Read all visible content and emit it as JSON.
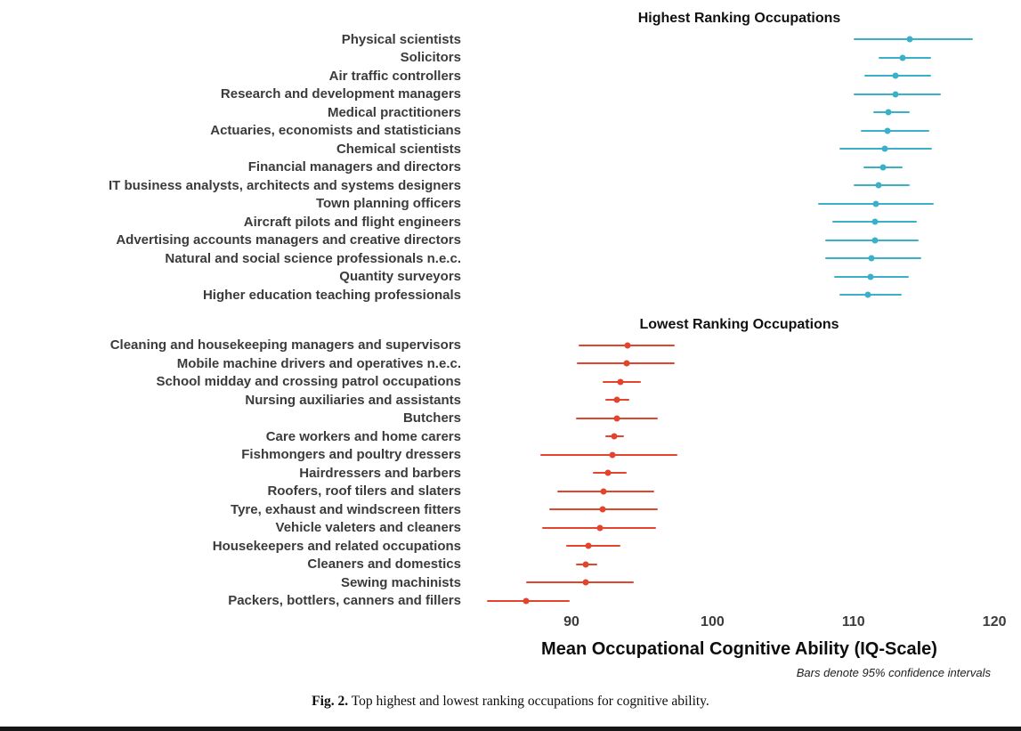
{
  "figure": {
    "xlabel": "Mean Occupational Cognitive Ability (IQ-Scale)",
    "note": "Bars denote 95% confidence intervals",
    "caption_label": "Fig. 2.",
    "caption_text": "Top highest and lowest ranking occupations for cognitive ability."
  },
  "chart_data": [
    {
      "type": "scatter",
      "title": "Highest Ranking Occupations",
      "color": "#3bb0c9",
      "xlim": [
        82.8,
        121
      ],
      "xticks": [
        90,
        100,
        110,
        120
      ],
      "legend": "none",
      "grid": false,
      "series": [
        {
          "label": "Physical scientists",
          "value": 114.0,
          "ci": [
            110.0,
            118.5
          ]
        },
        {
          "label": "Solicitors",
          "value": 113.5,
          "ci": [
            111.8,
            115.5
          ]
        },
        {
          "label": "Air traffic controllers",
          "value": 113.0,
          "ci": [
            110.8,
            115.5
          ]
        },
        {
          "label": "Research and development managers",
          "value": 113.0,
          "ci": [
            110.0,
            116.2
          ]
        },
        {
          "label": "Medical practitioners",
          "value": 112.5,
          "ci": [
            111.4,
            114.0
          ]
        },
        {
          "label": "Actuaries, economists and statisticians",
          "value": 112.4,
          "ci": [
            110.5,
            115.4
          ]
        },
        {
          "label": "Chemical scientists",
          "value": 112.2,
          "ci": [
            109.0,
            115.6
          ]
        },
        {
          "label": "Financial managers and directors",
          "value": 112.1,
          "ci": [
            110.7,
            113.5
          ]
        },
        {
          "label": "IT business analysts, architects and systems designers",
          "value": 111.8,
          "ci": [
            110.0,
            114.0
          ]
        },
        {
          "label": "Town planning officers",
          "value": 111.6,
          "ci": [
            107.5,
            115.7
          ]
        },
        {
          "label": "Aircraft pilots and flight engineers",
          "value": 111.5,
          "ci": [
            108.5,
            114.5
          ]
        },
        {
          "label": "Advertising accounts managers and creative directors",
          "value": 111.5,
          "ci": [
            108.0,
            114.6
          ]
        },
        {
          "label": "Natural and social science professionals n.e.c.",
          "value": 111.3,
          "ci": [
            108.0,
            114.8
          ]
        },
        {
          "label": "Quantity surveyors",
          "value": 111.2,
          "ci": [
            108.6,
            113.9
          ]
        },
        {
          "label": "Higher education teaching professionals",
          "value": 111.0,
          "ci": [
            109.0,
            113.4
          ]
        }
      ]
    },
    {
      "type": "scatter",
      "title": "Lowest Ranking Occupations",
      "color": "#e2442d",
      "xlim": [
        82.8,
        121
      ],
      "xticks": [
        90,
        100,
        110,
        120
      ],
      "legend": "none",
      "grid": false,
      "series": [
        {
          "label": "Cleaning and housekeeping managers and supervisors",
          "value": 94.0,
          "ci": [
            90.5,
            97.3
          ]
        },
        {
          "label": "Mobile machine drivers and operatives n.e.c.",
          "value": 93.9,
          "ci": [
            90.4,
            97.3
          ]
        },
        {
          "label": "School midday and crossing patrol occupations",
          "value": 93.5,
          "ci": [
            92.2,
            94.9
          ]
        },
        {
          "label": "Nursing auxiliaries and assistants",
          "value": 93.2,
          "ci": [
            92.4,
            94.1
          ]
        },
        {
          "label": "Butchers",
          "value": 93.2,
          "ci": [
            90.3,
            96.1
          ]
        },
        {
          "label": "Care workers and home carers",
          "value": 93.0,
          "ci": [
            92.4,
            93.7
          ]
        },
        {
          "label": "Fishmongers and poultry dressers",
          "value": 92.9,
          "ci": [
            87.8,
            97.5
          ]
        },
        {
          "label": "Hairdressers and barbers",
          "value": 92.6,
          "ci": [
            91.5,
            93.9
          ]
        },
        {
          "label": "Roofers, roof tilers and slaters",
          "value": 92.3,
          "ci": [
            89.0,
            95.9
          ]
        },
        {
          "label": "Tyre, exhaust and windscreen fitters",
          "value": 92.2,
          "ci": [
            88.4,
            96.1
          ]
        },
        {
          "label": "Vehicle valeters and cleaners",
          "value": 92.0,
          "ci": [
            87.9,
            96.0
          ]
        },
        {
          "label": "Housekeepers and related occupations",
          "value": 91.2,
          "ci": [
            89.6,
            93.5
          ]
        },
        {
          "label": "Cleaners and domestics",
          "value": 91.0,
          "ci": [
            90.3,
            91.8
          ]
        },
        {
          "label": "Sewing machinists",
          "value": 91.0,
          "ci": [
            86.8,
            94.4
          ]
        },
        {
          "label": "Packers, bottlers, canners and fillers",
          "value": 86.8,
          "ci": [
            84.0,
            89.9
          ]
        }
      ]
    }
  ]
}
